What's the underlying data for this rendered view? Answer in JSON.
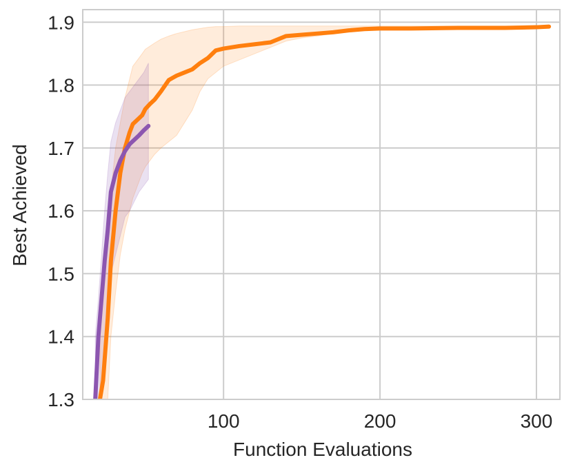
{
  "chart_data": {
    "type": "line",
    "title": "",
    "xlabel": "Function Evaluations",
    "ylabel": "Best Achieved",
    "xlim": [
      10,
      315
    ],
    "ylim": [
      1.3,
      1.92
    ],
    "xticks": [
      100,
      200,
      300
    ],
    "xtick_labels": [
      "100",
      "200",
      "300"
    ],
    "yticks": [
      1.3,
      1.4,
      1.5,
      1.6,
      1.7,
      1.8,
      1.9
    ],
    "ytick_labels": [
      "1.3",
      "1.4",
      "1.5",
      "1.6",
      "1.7",
      "1.8",
      "1.9"
    ],
    "grid": true,
    "legend": "none",
    "series": [
      {
        "color": "#ff7f0e",
        "band_opacity": 0.15,
        "x": [
          21,
          23,
          26,
          28,
          31,
          34,
          37,
          40,
          42,
          45,
          48,
          50,
          53,
          56,
          60,
          65,
          70,
          75,
          80,
          85,
          90,
          95,
          100,
          110,
          120,
          130,
          140,
          150,
          160,
          170,
          180,
          190,
          200,
          220,
          250,
          280,
          300,
          308
        ],
        "y": [
          1.3,
          1.33,
          1.43,
          1.52,
          1.6,
          1.66,
          1.7,
          1.725,
          1.738,
          1.745,
          1.752,
          1.762,
          1.77,
          1.777,
          1.79,
          1.808,
          1.815,
          1.82,
          1.825,
          1.835,
          1.843,
          1.855,
          1.858,
          1.862,
          1.865,
          1.868,
          1.878,
          1.88,
          1.882,
          1.884,
          1.887,
          1.889,
          1.89,
          1.89,
          1.891,
          1.891,
          1.892,
          1.893
        ],
        "y_low": [
          1.3,
          1.3,
          1.3,
          1.4,
          1.47,
          1.53,
          1.57,
          1.6,
          1.62,
          1.64,
          1.66,
          1.67,
          1.68,
          1.69,
          1.7,
          1.71,
          1.72,
          1.74,
          1.76,
          1.79,
          1.81,
          1.82,
          1.83,
          1.84,
          1.85,
          1.86,
          1.87,
          1.875,
          1.878,
          1.882,
          1.885,
          1.888,
          1.889,
          1.89,
          1.891,
          1.891,
          1.892,
          1.893
        ],
        "y_high": [
          1.45,
          1.5,
          1.56,
          1.63,
          1.7,
          1.74,
          1.78,
          1.81,
          1.83,
          1.84,
          1.85,
          1.857,
          1.862,
          1.867,
          1.873,
          1.878,
          1.882,
          1.885,
          1.888,
          1.89,
          1.892,
          1.893,
          1.893,
          1.894,
          1.894,
          1.894,
          1.894,
          1.894,
          1.894,
          1.894,
          1.894,
          1.894,
          1.894,
          1.894,
          1.894,
          1.894,
          1.894,
          1.894
        ]
      },
      {
        "color": "#8c56b0",
        "band_opacity": 0.18,
        "x": [
          18,
          20,
          22,
          24,
          26,
          28,
          31,
          34,
          37,
          40,
          43,
          46,
          49,
          52
        ],
        "y": [
          1.3,
          1.4,
          1.46,
          1.52,
          1.57,
          1.63,
          1.66,
          1.68,
          1.695,
          1.706,
          1.713,
          1.72,
          1.728,
          1.735
        ],
        "y_low": [
          1.3,
          1.3,
          1.33,
          1.39,
          1.44,
          1.5,
          1.53,
          1.56,
          1.59,
          1.6,
          1.615,
          1.63,
          1.64,
          1.65
        ],
        "y_high": [
          1.4,
          1.46,
          1.53,
          1.6,
          1.66,
          1.71,
          1.74,
          1.76,
          1.78,
          1.79,
          1.8,
          1.81,
          1.82,
          1.835
        ]
      }
    ]
  }
}
